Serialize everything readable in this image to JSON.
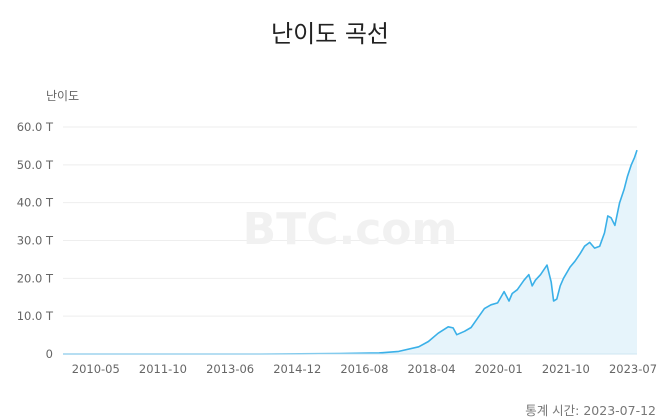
{
  "chart_data": {
    "type": "area",
    "title": "난이도 곡선",
    "ylabel": "난이도",
    "watermark": "BTC.com",
    "footer": "통계 시간: 2023-07-12",
    "x_ticks": [
      "2010-05",
      "2011-10",
      "2013-06",
      "2014-12",
      "2016-08",
      "2018-04",
      "2020-01",
      "2021-10",
      "2023-07"
    ],
    "y_ticks": [
      "0",
      "10.0 T",
      "20.0 T",
      "30.0 T",
      "40.0 T",
      "50.0 T",
      "60.0 T"
    ],
    "xlim": [
      "2009-01-01",
      "2023-07-12"
    ],
    "ylim": [
      0,
      60
    ],
    "y_unit": "T",
    "grid": true,
    "colors": {
      "line": "#3ab0e8",
      "fill": "#e6f4fb",
      "grid": "#eeeeee"
    },
    "series": [
      {
        "x": [
          "2009-01-01",
          "2013-01-01",
          "2014-01-01",
          "2015-01-01",
          "2016-01-01",
          "2017-01-01",
          "2017-07-01",
          "2018-01-01",
          "2018-04-01",
          "2018-07-01",
          "2018-10-01",
          "2018-11-15",
          "2018-12-20",
          "2019-03-01",
          "2019-05-01",
          "2019-07-01",
          "2019-09-01",
          "2019-11-01",
          "2020-01-01",
          "2020-03-01",
          "2020-04-15",
          "2020-05-15",
          "2020-07-01",
          "2020-09-01",
          "2020-10-15",
          "2020-11-15",
          "2020-12-15",
          "2021-02-01",
          "2021-04-01",
          "2021-05-10",
          "2021-06-01",
          "2021-07-01",
          "2021-08-01",
          "2021-09-01",
          "2021-11-01",
          "2021-12-15",
          "2022-02-01",
          "2022-03-15",
          "2022-05-01",
          "2022-06-15",
          "2022-08-01",
          "2022-09-15",
          "2022-10-15",
          "2022-11-15",
          "2022-12-20",
          "2023-02-01",
          "2023-03-15",
          "2023-04-15",
          "2023-05-20",
          "2023-06-20",
          "2023-07-12"
        ],
        "values": [
          0,
          0,
          0.001,
          0.04,
          0.1,
          0.3,
          0.7,
          1.9,
          3.3,
          5.5,
          7.2,
          6.9,
          5.1,
          6.0,
          7.0,
          9.5,
          12.0,
          13.0,
          13.5,
          16.5,
          14.0,
          16.0,
          17.0,
          19.5,
          21.0,
          18.0,
          19.5,
          21.0,
          23.5,
          19.0,
          14.0,
          14.5,
          18.0,
          20.0,
          23.0,
          24.5,
          26.5,
          28.5,
          29.5,
          28.0,
          28.5,
          32.0,
          36.5,
          36.0,
          34.0,
          40.0,
          43.5,
          47.0,
          50.0,
          52.0,
          53.9
        ]
      }
    ]
  }
}
